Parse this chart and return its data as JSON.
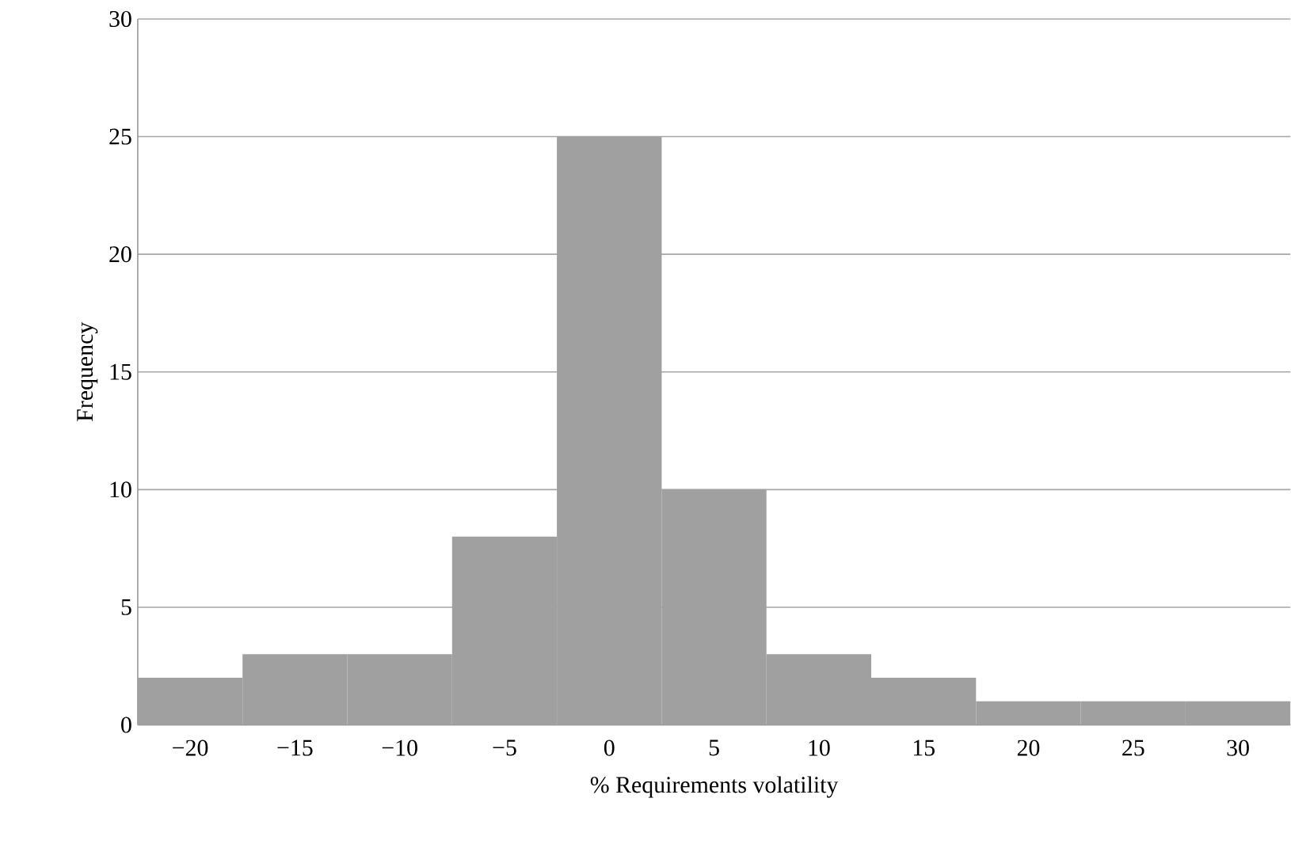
{
  "chart_data": {
    "type": "bar",
    "xlabel": "% Requirements volatility",
    "ylabel": "Frequency",
    "categories": [
      "−20",
      "−15",
      "−10",
      "−5",
      "0",
      "5",
      "10",
      "15",
      "20",
      "25",
      "30"
    ],
    "values": [
      2,
      3,
      3,
      8,
      25,
      10,
      3,
      2,
      1,
      1,
      1
    ],
    "color": "#a0a0a0",
    "ylim": [
      0,
      30
    ],
    "yticks": [
      0,
      5,
      10,
      15,
      20,
      25,
      30
    ],
    "grid": "y"
  }
}
